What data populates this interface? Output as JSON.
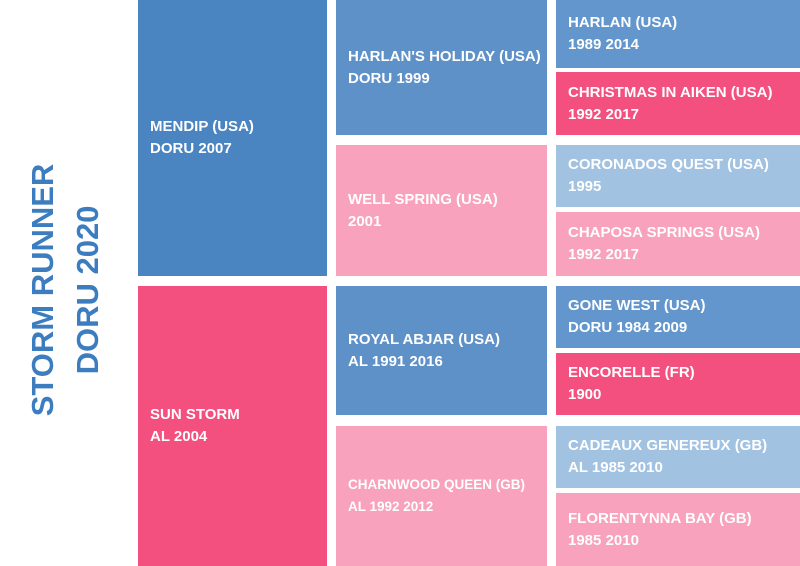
{
  "title": {
    "line1": "STORM RUNNER",
    "line2": "DORU 2020"
  },
  "nodes": [
    {
      "name": "MENDIP (USA)",
      "info": "DORU 2007"
    },
    {
      "name": "SUN STORM",
      "info": "AL 2004"
    },
    {
      "name": "HARLAN'S HOLIDAY (USA)",
      "info": "DORU 1999"
    },
    {
      "name": "WELL SPRING (USA)",
      "info": "2001"
    },
    {
      "name": "ROYAL ABJAR (USA)",
      "info": "AL 1991 2016"
    },
    {
      "name": "CHARNWOOD QUEEN (GB)",
      "info": "AL 1992 2012"
    },
    {
      "name": "HARLAN (USA)",
      "info": "1989 2014"
    },
    {
      "name": "CHRISTMAS IN AIKEN (USA)",
      "info": "1992 2017"
    },
    {
      "name": "CORONADOS QUEST (USA)",
      "info": "1995"
    },
    {
      "name": "CHAPOSA SPRINGS (USA)",
      "info": "1992 2017"
    },
    {
      "name": "GONE WEST (USA)",
      "info": "DORU 1984 2009"
    },
    {
      "name": "ENCORELLE (FR)",
      "info": "1900"
    },
    {
      "name": "CADEAUX GENEREUX (GB)",
      "info": "AL 1985 2010"
    },
    {
      "name": "FLORENTYNNA BAY (GB)",
      "info": "1985 2010"
    }
  ]
}
